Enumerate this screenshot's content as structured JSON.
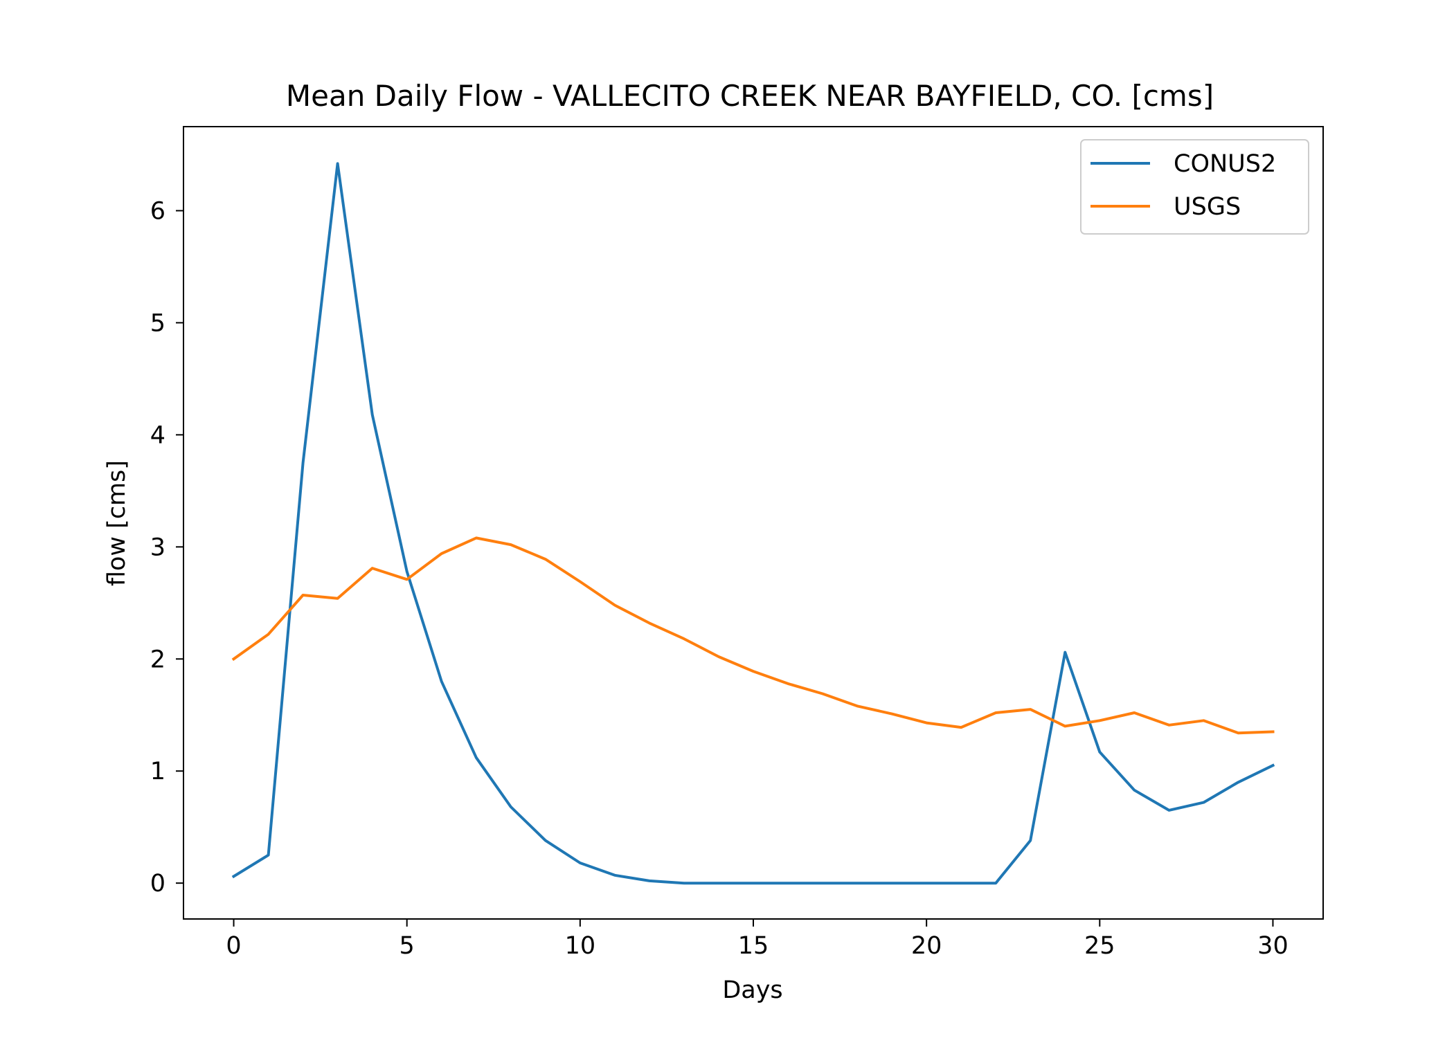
{
  "chart_data": {
    "type": "line",
    "title": "Mean Daily Flow - VALLECITO CREEK NEAR BAYFIELD, CO. [cms]",
    "xlabel": "Days",
    "ylabel": "flow [cms]",
    "xlim": [
      -1.45,
      31.45
    ],
    "ylim": [
      -0.32,
      6.75
    ],
    "xticks": [
      0,
      5,
      10,
      15,
      20,
      25,
      30
    ],
    "yticks": [
      0,
      1,
      2,
      3,
      4,
      5,
      6
    ],
    "grid": false,
    "legend": {
      "position": "top-right",
      "entries": [
        "CONUS2",
        "USGS"
      ]
    },
    "x": [
      0,
      1,
      2,
      3,
      4,
      5,
      6,
      7,
      8,
      9,
      10,
      11,
      12,
      13,
      14,
      15,
      16,
      17,
      18,
      19,
      20,
      21,
      22,
      23,
      24,
      25,
      26,
      27,
      28,
      29,
      30
    ],
    "series": [
      {
        "name": "CONUS2",
        "color": "#1f77b4",
        "values": [
          0.06,
          0.25,
          3.75,
          6.42,
          4.18,
          2.78,
          1.8,
          1.12,
          0.68,
          0.38,
          0.18,
          0.07,
          0.02,
          0.0,
          0.0,
          0.0,
          0.0,
          0.0,
          0.0,
          0.0,
          0.0,
          0.0,
          0.0,
          0.38,
          2.06,
          1.17,
          0.83,
          0.65,
          0.72,
          0.9,
          1.05
        ]
      },
      {
        "name": "USGS",
        "color": "#ff7f0e",
        "values": [
          2.0,
          2.22,
          2.57,
          2.54,
          2.81,
          2.71,
          2.94,
          3.08,
          3.02,
          2.89,
          2.69,
          2.48,
          2.32,
          2.18,
          2.02,
          1.89,
          1.78,
          1.69,
          1.58,
          1.51,
          1.43,
          1.39,
          1.52,
          1.55,
          1.4,
          1.45,
          1.52,
          1.41,
          1.45,
          1.34,
          1.35
        ]
      }
    ]
  }
}
